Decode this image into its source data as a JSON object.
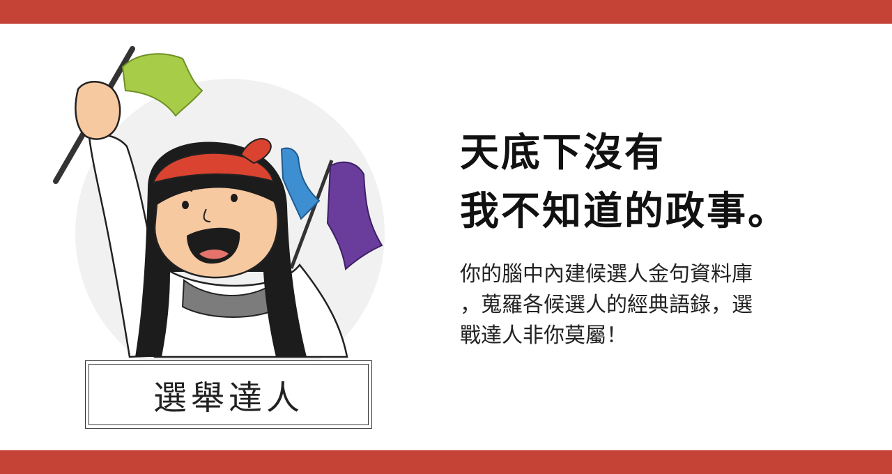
{
  "colors": {
    "brand_red": "#c54236",
    "circle_bg": "#f1f1f1",
    "flag_green": "#a6cc48",
    "flag_blue": "#3d8fd1",
    "flag_purple": "#6a3d9c",
    "skin": "#f7c9a1",
    "cap_red": "#d9432f"
  },
  "card": {
    "name_label": "選舉達人",
    "headline_line1": "天底下沒有",
    "headline_line2": "我不知道的政事。",
    "description_line1": "你的腦中內建候選人金句資料庫",
    "description_line2": "，蒐羅各候選人的經典語錄，選",
    "description_line3": "戰達人非你莫屬！"
  }
}
